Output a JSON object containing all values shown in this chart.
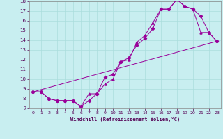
{
  "xlabel": "Windchill (Refroidissement éolien,°C)",
  "xlim": [
    -0.5,
    23.5
  ],
  "ylim": [
    7,
    18
  ],
  "xticks": [
    0,
    1,
    2,
    3,
    4,
    5,
    6,
    7,
    8,
    9,
    10,
    11,
    12,
    13,
    14,
    15,
    16,
    17,
    18,
    19,
    20,
    21,
    22,
    23
  ],
  "yticks": [
    7,
    8,
    9,
    10,
    11,
    12,
    13,
    14,
    15,
    16,
    17,
    18
  ],
  "bg_color": "#c8eef0",
  "grid_color": "#aadddd",
  "line_color": "#990099",
  "line1_x": [
    0,
    1,
    2,
    3,
    4,
    5,
    6,
    7,
    8,
    9,
    10,
    11,
    12,
    13,
    14,
    15,
    16,
    17,
    18,
    19,
    20,
    21,
    22,
    23
  ],
  "line1_y": [
    8.7,
    8.7,
    8.0,
    7.8,
    7.8,
    7.8,
    7.2,
    7.8,
    8.5,
    10.2,
    10.5,
    11.8,
    12.2,
    13.5,
    14.2,
    15.2,
    17.2,
    17.2,
    18.2,
    17.5,
    17.2,
    16.5,
    14.8,
    13.9
  ],
  "line2_x": [
    0,
    1,
    2,
    3,
    4,
    5,
    6,
    7,
    8,
    9,
    10,
    11,
    12,
    13,
    14,
    15,
    16,
    17,
    18,
    19,
    20,
    21,
    22,
    23
  ],
  "line2_y": [
    8.7,
    8.7,
    8.0,
    7.8,
    7.8,
    7.8,
    7.2,
    8.5,
    8.5,
    9.5,
    10.0,
    11.8,
    12.0,
    13.8,
    14.5,
    15.8,
    17.2,
    17.2,
    18.2,
    17.5,
    17.2,
    14.8,
    14.8,
    13.9
  ],
  "line3_x": [
    0,
    23
  ],
  "line3_y": [
    8.7,
    13.9
  ]
}
